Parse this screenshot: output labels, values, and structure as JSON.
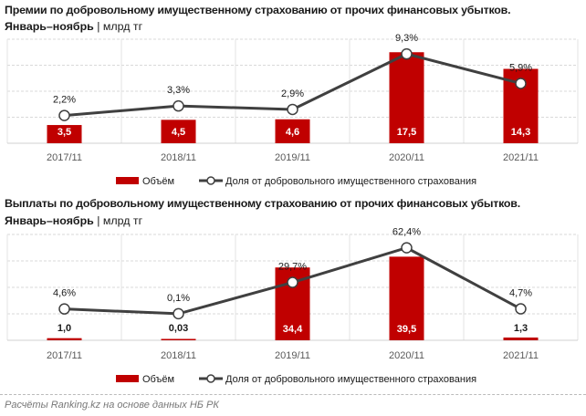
{
  "colors": {
    "bar": "#c00000",
    "line": "#404040",
    "marker_fill": "#ffffff",
    "grid": "#d9d9d9",
    "text": "#1a1a1a",
    "axis_text": "#595959"
  },
  "source": "Расчёты Ranking.kz на основе данных НБ РК",
  "chart_data": [
    {
      "type": "bar+line",
      "title": "Премии по добровольному имущественному страхованию от прочих финансовых убытков.",
      "subtitle_bold": "Январь–ноябрь",
      "subtitle_sep": "|",
      "subtitle_unit": "млрд тг",
      "categories": [
        "2017/11",
        "2018/11",
        "2019/11",
        "2020/11",
        "2021/11"
      ],
      "series": [
        {
          "name": "Объём",
          "type": "bar",
          "axis": "primary",
          "values": [
            3.5,
            4.5,
            4.6,
            17.5,
            14.3
          ],
          "labels": [
            "3,5",
            "4,5",
            "4,6",
            "17,5",
            "14,3"
          ]
        },
        {
          "name": "Доля от добровольного имущественного страхования",
          "type": "line",
          "axis": "secondary",
          "unit": "%",
          "values": [
            2.2,
            3.3,
            2.9,
            9.3,
            5.9
          ],
          "labels": [
            "2,2%",
            "3,3%",
            "2,9%",
            "9,3%",
            "5,9%"
          ]
        }
      ],
      "ylim": [
        0,
        20
      ],
      "y2lim": [
        -1,
        11
      ],
      "grid": true,
      "legend": "bottom"
    },
    {
      "type": "bar+line",
      "title": "Выплаты по добровольному имущественному страхованию от прочих финансовых убытков.",
      "subtitle_bold": "Январь–ноябрь",
      "subtitle_sep": "|",
      "subtitle_unit": "млрд тг",
      "categories": [
        "2017/11",
        "2018/11",
        "2019/11",
        "2020/11",
        "2021/11"
      ],
      "series": [
        {
          "name": "Объём",
          "type": "bar",
          "axis": "primary",
          "values": [
            1.0,
            0.03,
            34.4,
            39.5,
            1.3
          ],
          "labels": [
            "1,0",
            "0,03",
            "34,4",
            "39,5",
            "1,3"
          ]
        },
        {
          "name": "Доля от добровольного имущественного страхования",
          "type": "line",
          "axis": "secondary",
          "unit": "%",
          "values": [
            4.6,
            0.1,
            29.7,
            62.4,
            4.7
          ],
          "labels": [
            "4,6%",
            "0,1%",
            "29,7%",
            "62,4%",
            "4,7%"
          ]
        }
      ],
      "ylim": [
        0,
        50
      ],
      "y2lim": [
        -25,
        75
      ],
      "grid": true,
      "legend": "bottom"
    }
  ]
}
